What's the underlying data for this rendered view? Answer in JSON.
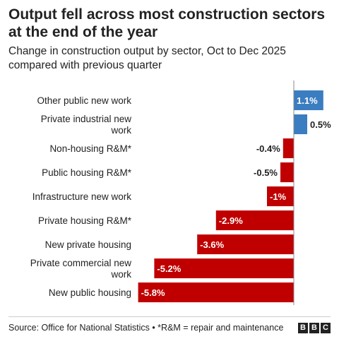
{
  "header": {
    "title": "Output fell across most construction sectors at the end of the year",
    "subtitle": "Change in construction output by sector, Oct to Dec 2025 compared with previous quarter"
  },
  "footer": {
    "source": "Source: Office for National Statistics • *R&M = repair and maintenance",
    "logo": [
      "B",
      "B",
      "C"
    ]
  },
  "colors": {
    "positive": "#3a7dc0",
    "negative": "#c00000",
    "axis": "#888888"
  },
  "chart_data": {
    "type": "bar",
    "orientation": "horizontal",
    "categories": [
      "Other public new work",
      "Private industrial new work",
      "Non-housing R&M*",
      "Public housing R&M*",
      "Infrastructure new work",
      "Private housing R&M*",
      "New private housing",
      "Private commercial new work",
      "New public housing"
    ],
    "values": [
      1.1,
      0.5,
      -0.4,
      -0.5,
      -1,
      -2.9,
      -3.6,
      -5.2,
      -5.8
    ],
    "value_labels": [
      "1.1%",
      "0.5%",
      "-0.4%",
      "-0.5%",
      "-1%",
      "-2.9%",
      "-3.6%",
      "-5.2%",
      "-5.8%"
    ],
    "title": "Output fell across most construction sectors at the end of the year",
    "subtitle": "Change in construction output by sector, Oct to Dec 2025 compared with previous quarter",
    "xlim": [
      -5.8,
      1.1
    ],
    "grid": false,
    "legend": "none"
  }
}
